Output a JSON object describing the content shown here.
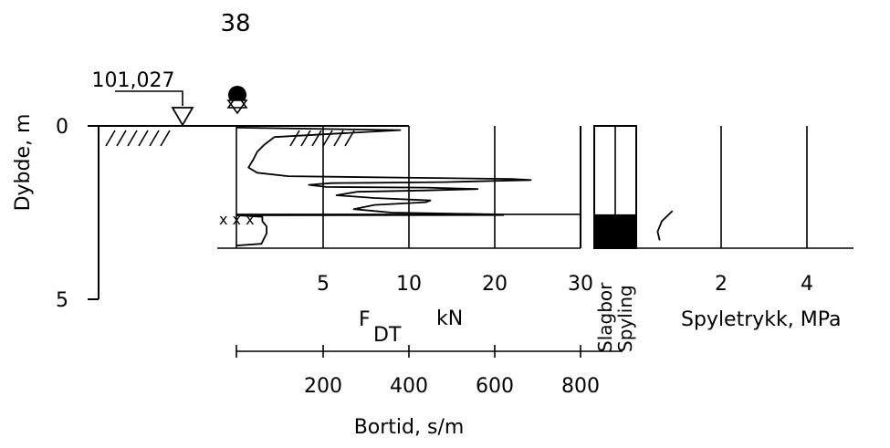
{
  "chart_data": {
    "type": "line",
    "borehole_id": "38",
    "ground_level": "101,027",
    "depth_axis": {
      "label": "Dybde, m",
      "ticks": [
        "0",
        "5"
      ],
      "range": [
        0,
        5
      ],
      "inverted": true
    },
    "force_axis": {
      "label_main": "F",
      "label_sub": "DT",
      "label_unit": "kN",
      "ticks": [
        "5",
        "10",
        "20",
        "30"
      ]
    },
    "time_axis": {
      "label": "Bortid, s/m",
      "ticks": [
        "200",
        "400",
        "600",
        "800"
      ]
    },
    "pressure_axis": {
      "label": "Spyletrykk, MPa",
      "ticks": [
        "2",
        "4"
      ]
    },
    "method_columns": [
      "Slagbor",
      "Spyling"
    ],
    "method_interval": {
      "from_depth": 2.55,
      "to_depth": 3.5
    },
    "stop_depth": 3.5,
    "force_profile": [
      [
        0.0,
        0.05
      ],
      [
        9.5,
        0.12
      ],
      [
        2.2,
        0.32
      ],
      [
        1.6,
        0.55
      ],
      [
        1.2,
        0.75
      ],
      [
        1.0,
        0.95
      ],
      [
        0.7,
        1.2
      ],
      [
        1.2,
        1.35
      ],
      [
        3.0,
        1.45
      ],
      [
        12.0,
        1.5
      ],
      [
        22.0,
        1.53
      ],
      [
        24.2,
        1.56
      ],
      [
        14.0,
        1.62
      ],
      [
        5.5,
        1.65
      ],
      [
        4.2,
        1.7
      ],
      [
        5.2,
        1.76
      ],
      [
        12.0,
        1.78
      ],
      [
        18.0,
        1.82
      ],
      [
        12.0,
        1.86
      ],
      [
        7.0,
        1.9
      ],
      [
        5.8,
        2.0
      ],
      [
        8.0,
        2.08
      ],
      [
        12.5,
        2.15
      ],
      [
        12.0,
        2.2
      ],
      [
        8.0,
        2.28
      ],
      [
        6.8,
        2.4
      ],
      [
        9.0,
        2.5
      ],
      [
        20.0,
        2.55
      ],
      [
        21.0,
        2.57
      ],
      [
        0.0,
        2.58
      ]
    ],
    "time_profile": [
      [
        0,
        2.58
      ],
      [
        60,
        2.62
      ],
      [
        60,
        2.75
      ],
      [
        70,
        2.9
      ],
      [
        70,
        3.1
      ],
      [
        58,
        3.4
      ],
      [
        0,
        3.45
      ]
    ],
    "pressure_profile": [
      [
        0.85,
        2.45
      ],
      [
        0.6,
        2.75
      ],
      [
        0.5,
        3.05
      ],
      [
        0.55,
        3.3
      ]
    ]
  }
}
